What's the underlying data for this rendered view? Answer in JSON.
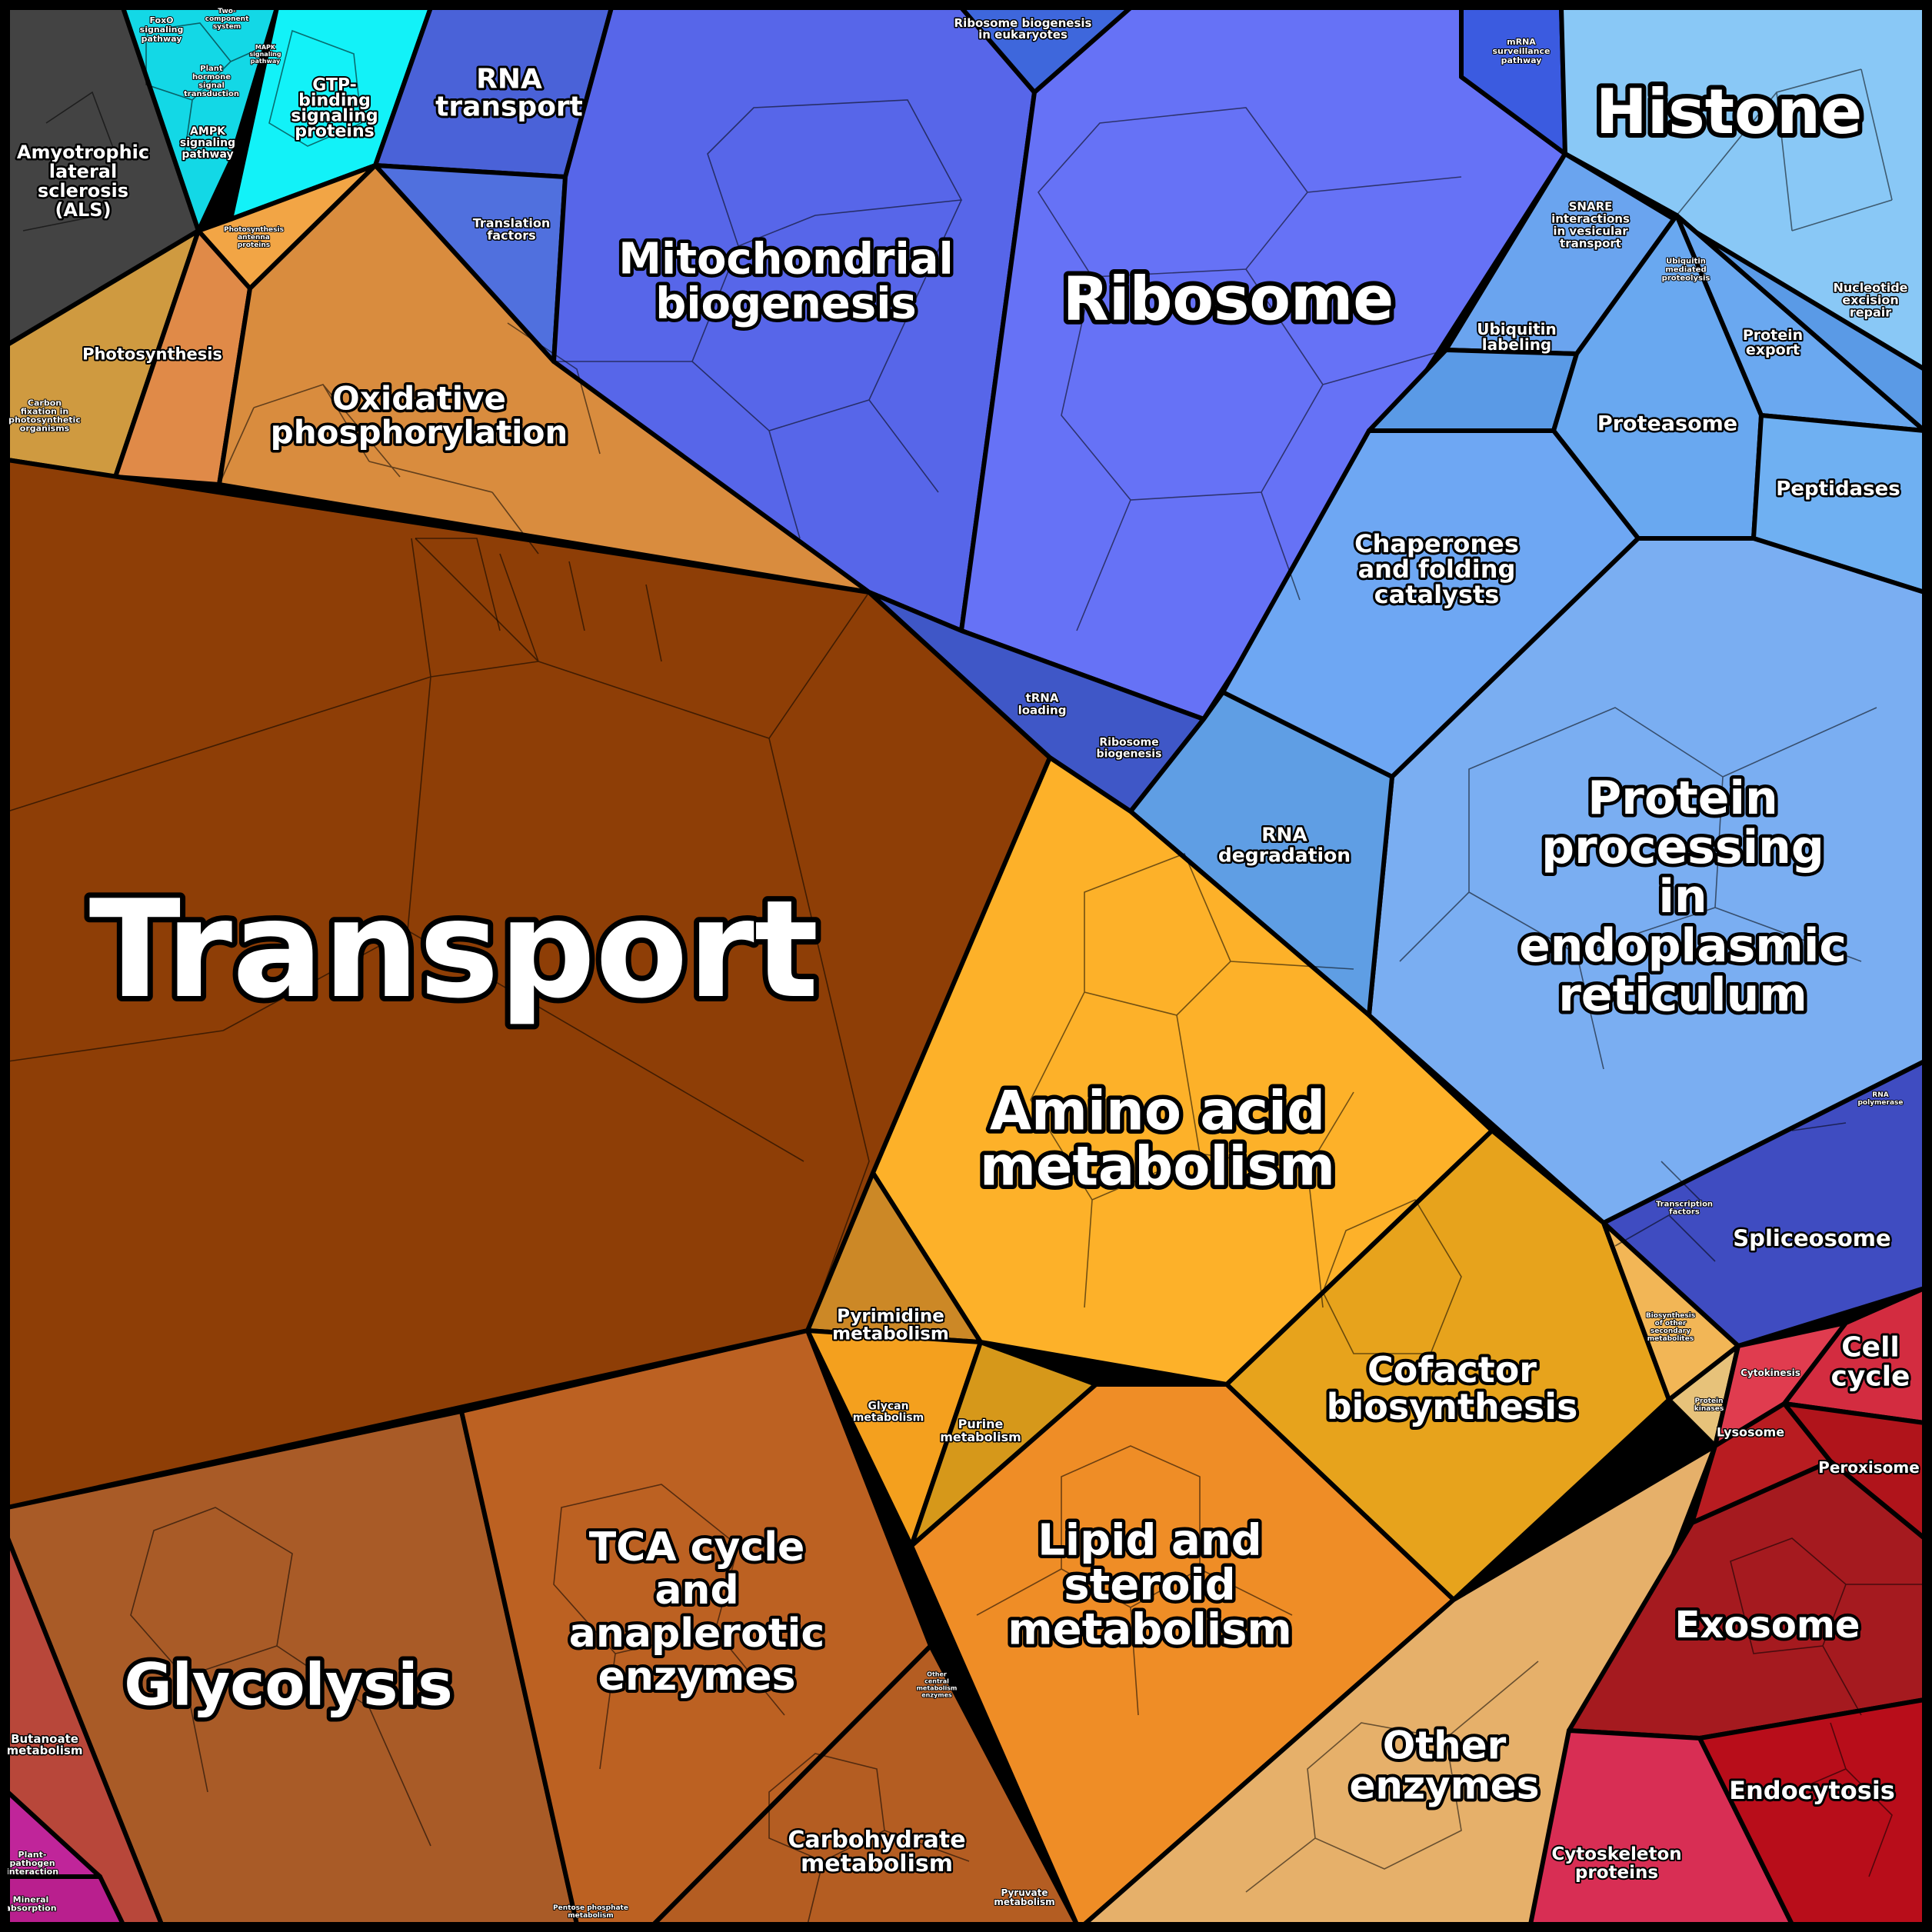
{
  "colors": {
    "transport": "#8e3e06",
    "oxphos": "#d98c3e",
    "photosynthesis": "#e08a48",
    "carbonfix": "#cf9a40",
    "photoprot": "#f2a545",
    "als": "#434343",
    "signaling": "#13d8e6",
    "gtp": "#12f2f8",
    "rnatransport": "#4a62d8",
    "translation": "#5070de",
    "mito": "#5766e9",
    "ribosome": "#6672f6",
    "ribobio": "#3e67dc",
    "mrna": "#3b5be0",
    "histone": "#89c8f6",
    "histone_small": "#9cc2f5",
    "snare": "#6aa4ef",
    "ubiquitin": "#5a9ae6",
    "proteasome": "#69a8f0",
    "proteinexport": "#6aa8f0",
    "peptidases": "#6fb0f2",
    "chaperones": "#6ea7f3",
    "er": "#7aaef2",
    "rnadeg": "#5f9ee4",
    "trna": "#3f57c7",
    "spliceosome": "#3f4cc1",
    "aminoacid": "#fdb129",
    "cofactor": "#e7a31c",
    "lipid": "#ef8d26",
    "pyrimidine": "#cc8826",
    "purine": "#d6981a",
    "glycan": "#f4a01e",
    "glycolysis": "#a95b27",
    "tca": "#bc6122",
    "carbohydrate": "#b45d22",
    "butanoate": "#b8473a",
    "otherenzymes": "#e6b06a",
    "biosynth_other": "#f2b656",
    "proteinkinases": "#e7c27a",
    "cellcycle": "#d32c40",
    "cytokinesis": "#e03c4f",
    "lysosome": "#b81c21",
    "peroxisome": "#b0141b",
    "exosome": "#a51a1f",
    "endocytosis": "#b80d1a",
    "cytoskeleton": "#d82e54",
    "plantpathogen": "#c0259a",
    "mineral": "#b91f8e",
    "border": "#000000"
  },
  "labels": {
    "transport": "Transport",
    "oxphos": "Oxidative phosphorylation",
    "photosynthesis": "Photosynthesis",
    "carbonfix": "Carbon fixation in photosynthetic organisms",
    "photoprot": "Photosynthesis antenna proteins",
    "als": "Amyotrophic lateral sclerosis (ALS)",
    "foxo": "FoxO signaling pathway",
    "twocomp": "Two-component system",
    "plant_hormone": "Plant hormone signal transduction",
    "mapk": "MAPK signaling pathway",
    "ampk": "AMPK signaling pathway",
    "gtp": "GTP-binding signaling proteins",
    "rnatransport": "RNA transport",
    "translation": "Translation factors",
    "mito": "Mitochondrial biogenesis",
    "ribosome": "Ribosome",
    "ribobio_euk": "Ribosome biogenesis in eukaryotes",
    "mrna": "mRNA surveillance pathway",
    "histone": "Histone",
    "snare": "SNARE interactions in vesicular transport",
    "ubiq_prot": "Ubiquitin mediated proteolysis",
    "ubiquitin": "Ubiquitin labeling",
    "nucleotide": "Nucleotide excision repair",
    "proteinexport": "Protein export",
    "proteasome": "Proteasome",
    "peptidases": "Peptidases",
    "chaperones": "Chaperones and folding catalysts",
    "er": "Protein processing in endoplasmic reticulum",
    "rnadeg": "RNA degradation",
    "trna": "tRNA loading",
    "ribobio": "Ribosome biogenesis",
    "spliceosome": "Spliceosome",
    "transcription": "Transcription factors",
    "rnapol": "RNA polymerase",
    "aminoacid": "Amino acid metabolism",
    "cofactor": "Cofactor biosynthesis",
    "lipid": "Lipid and steroid metabolism",
    "pyrimidine": "Pyrimidine metabolism",
    "purine": "Purine metabolism",
    "glycan": "Glycan metabolism",
    "biosynth_other": "Biosynthesis of other secondary metabolites",
    "proteinkinases": "Protein kinases",
    "glycolysis": "Glycolysis",
    "tca": "TCA cycle and anaplerotic enzymes",
    "carbohydrate": "Carbohydrate metabolism",
    "othercentral": "Other central metabolism enzymes",
    "pyruvate": "Pyruvate metabolism",
    "pentose": "Pentose phosphate metabolism",
    "butanoate": "Butanoate metabolism",
    "otherenzymes": "Other enzymes",
    "cellcycle": "Cell cycle",
    "cytokinesis": "Cytokinesis",
    "lysosome": "Lysosome",
    "peroxisome": "Peroxisome",
    "exosome": "Exosome",
    "endocytosis": "Endocytosis",
    "cytoskeleton": "Cytoskeleton proteins",
    "plantpathogen": "Plant-pathogen interaction",
    "mineral": "Mineral absorption"
  }
}
